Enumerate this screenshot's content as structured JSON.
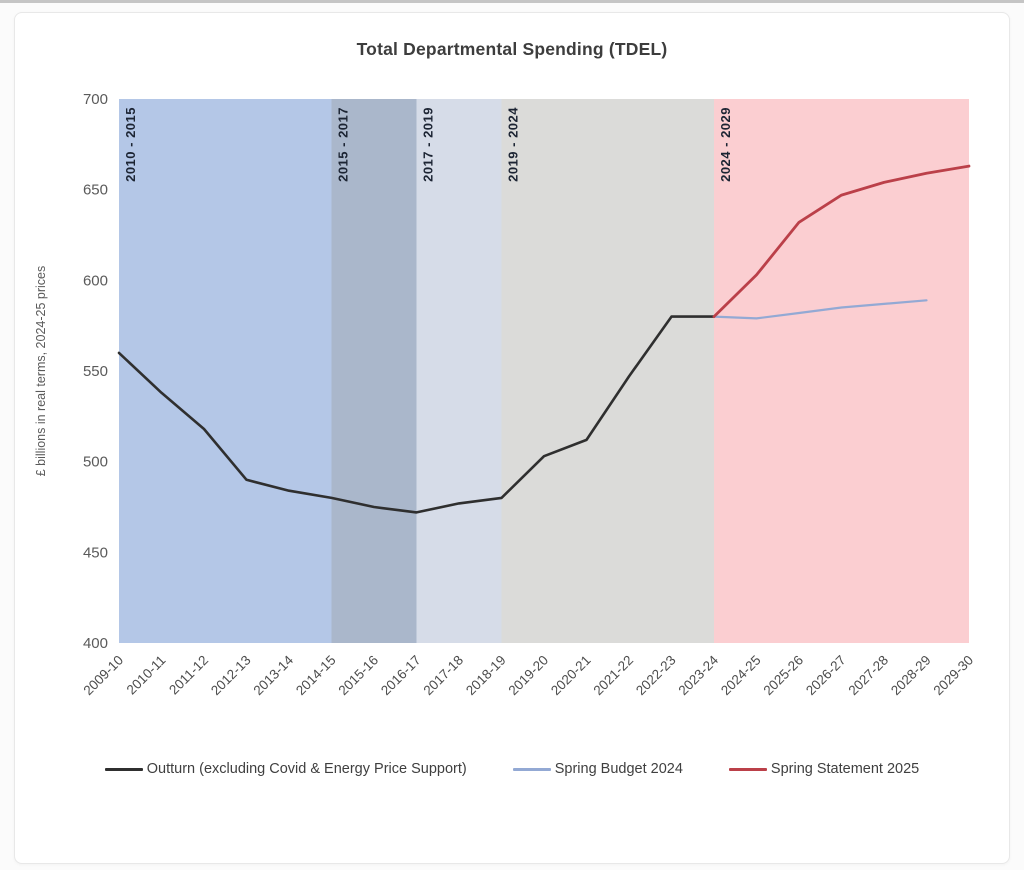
{
  "page": {
    "title": "Total Departmental Spending (TDEL)"
  },
  "chart_data": {
    "type": "line",
    "title": "Total Departmental Spending (TDEL)",
    "xlabel": "",
    "ylabel": "£ billions in real terms, 2024-25 prices",
    "ylim": [
      400,
      700
    ],
    "yticks": [
      400,
      450,
      500,
      550,
      600,
      650,
      700
    ],
    "grid": false,
    "legend_position": "bottom",
    "x_categories": [
      "2009-10",
      "2010-11",
      "2011-12",
      "2012-13",
      "2013-14",
      "2014-15",
      "2015-16",
      "2016-17",
      "2017-18",
      "2018-19",
      "2019-20",
      "2020-21",
      "2021-22",
      "2022-23",
      "2023-24",
      "2024-25",
      "2025-26",
      "2026-27",
      "2027-28",
      "2028-29",
      "2029-30"
    ],
    "series": [
      {
        "name": "Outturn (excluding Covid & Energy Price Support)",
        "color": "#2f2f2f",
        "line_width": 2.6,
        "start_category": "2009-10",
        "values": [
          560,
          538,
          518,
          490,
          484,
          480,
          475,
          472,
          477,
          480,
          503,
          512,
          547,
          580,
          580
        ]
      },
      {
        "name": "Spring Budget 2024",
        "color": "#93a9d4",
        "line_width": 2.2,
        "start_category": "2023-24",
        "values": [
          580,
          579,
          582,
          585,
          587,
          589
        ]
      },
      {
        "name": "Spring Statement 2025",
        "color": "#bb4049",
        "line_width": 2.8,
        "start_category": "2023-24",
        "values": [
          580,
          603,
          632,
          647,
          654,
          659,
          663
        ]
      }
    ],
    "bands": [
      {
        "label": "2010 - 2015",
        "from": "2009-10",
        "to": "2014-15",
        "color": "#b4c7e7"
      },
      {
        "label": "2015 - 2017",
        "from": "2014-15",
        "to": "2016-17",
        "color": "#aab7cb"
      },
      {
        "label": "2017 - 2019",
        "from": "2016-17",
        "to": "2018-19",
        "color": "#d6dce8"
      },
      {
        "label": "2019 - 2024",
        "from": "2018-19",
        "to": "2023-24",
        "color": "#dbdbd9"
      },
      {
        "label": "2024 - 2029",
        "from": "2023-24",
        "to": "2029-30",
        "color": "#fbced1"
      }
    ],
    "band_label_color": "#1c2433",
    "ytick_color": "#5a5a5a",
    "xtick_color": "#4c4c4c",
    "ylabel_color": "#5a5a5a"
  }
}
